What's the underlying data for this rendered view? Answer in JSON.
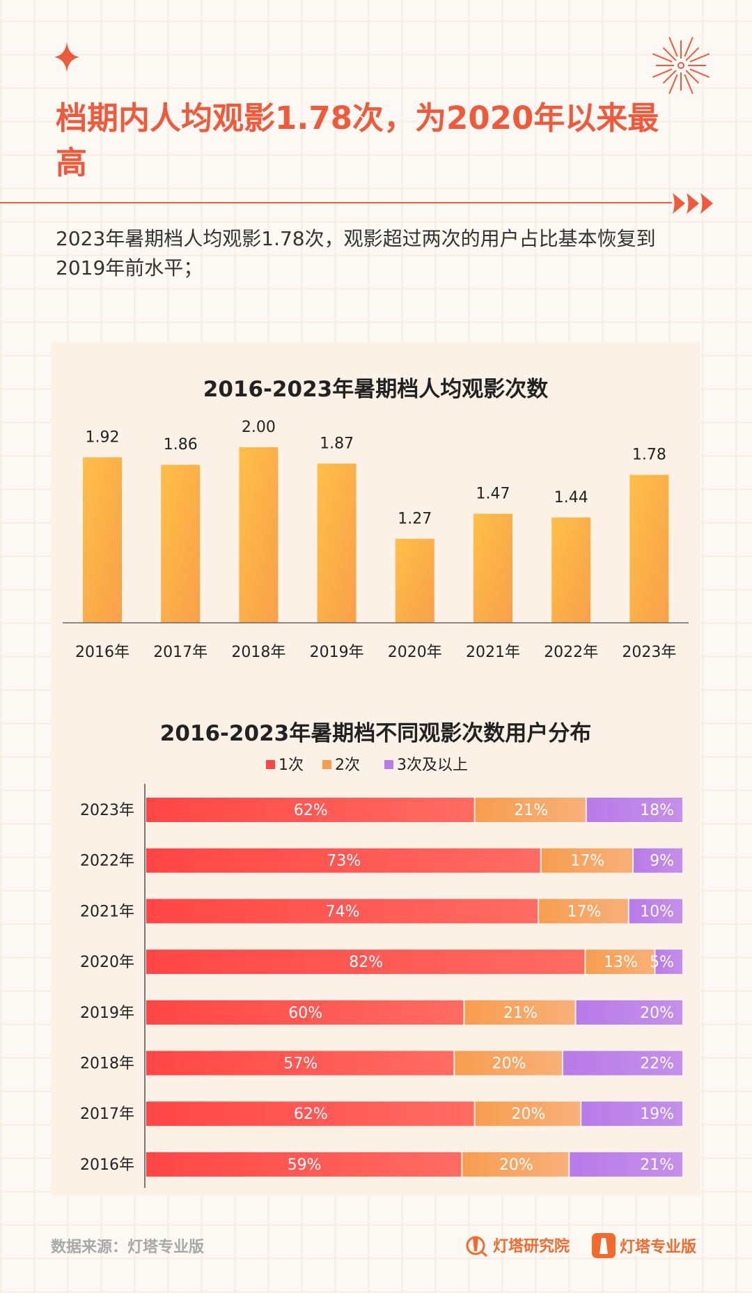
{
  "header": {
    "title": "档期内人均观影1.78次，为2020年以来最高",
    "subtitle": "2023年暑期档人均观影1.78次，观影超过两次的用户占比基本恢复到2019年前水平；"
  },
  "colors": {
    "accent": "#f05a3c",
    "bar_top": "#ffbf47",
    "bar_bottom": "#f8a04a",
    "one": "#ff4646",
    "two": "#f79d4f",
    "three": "#b87be8"
  },
  "chart_data": [
    {
      "type": "bar",
      "title": "2016-2023年暑期档人均观影次数",
      "categories": [
        "2016年",
        "2017年",
        "2018年",
        "2019年",
        "2020年",
        "2021年",
        "2022年",
        "2023年"
      ],
      "values": [
        1.92,
        1.86,
        2.0,
        1.87,
        1.27,
        1.47,
        1.44,
        1.78
      ],
      "value_labels": [
        "1.92",
        "1.86",
        "2.00",
        "1.87",
        "1.27",
        "1.47",
        "1.44",
        "1.78"
      ],
      "ylim": [
        0.6,
        2.0
      ],
      "grid": false
    },
    {
      "type": "bar",
      "orientation": "horizontal",
      "stacked": true,
      "title": "2016-2023年暑期档不同观影次数用户分布",
      "legend_position": "top",
      "categories": [
        "2023年",
        "2022年",
        "2021年",
        "2020年",
        "2019年",
        "2018年",
        "2017年",
        "2016年"
      ],
      "series": [
        {
          "name": "1次",
          "values": [
            62,
            73,
            74,
            82,
            60,
            57,
            62,
            59
          ]
        },
        {
          "name": "2次",
          "values": [
            21,
            17,
            17,
            13,
            21,
            20,
            20,
            20
          ]
        },
        {
          "name": "3次及以上",
          "values": [
            18,
            9,
            10,
            5,
            20,
            22,
            19,
            21
          ]
        }
      ],
      "unit": "%"
    }
  ],
  "footer": {
    "source": "数据来源：灯塔专业版",
    "logo1": "灯塔研究院",
    "logo2": "灯塔专业版"
  }
}
